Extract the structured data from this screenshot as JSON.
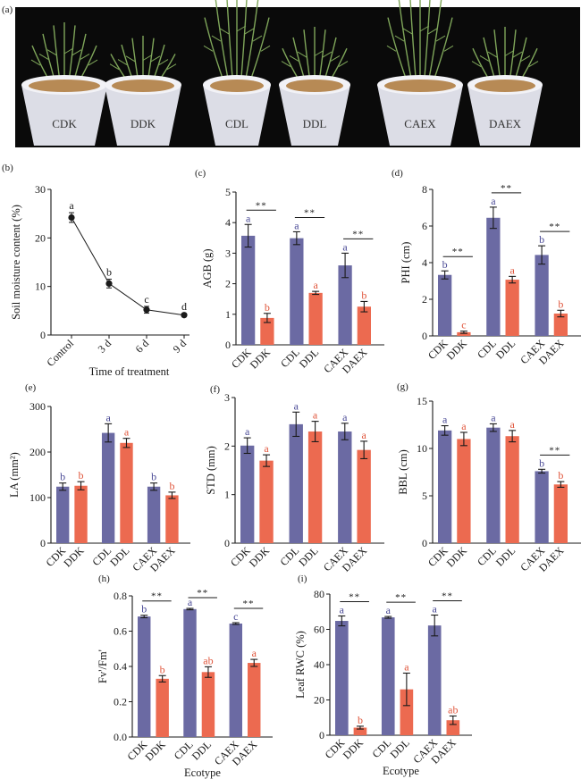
{
  "figure": {
    "colors": {
      "control": "#6b6aa3",
      "drought": "#ec6a50",
      "control_letter": "#4a4a96",
      "drought_letter": "#e0563c",
      "axis": "#1a1a1a",
      "photo_background": "#0a0a0a",
      "pot": "#dcdde6",
      "soil": "#b78a55",
      "plant": "#7fa65a"
    },
    "photo": {
      "label": "(a)",
      "pots": [
        "CDK",
        "DDK",
        "CDL",
        "DDL",
        "CAEX",
        "DAEX"
      ]
    }
  },
  "chart_data": [
    {
      "id": "b",
      "panel_label": "(b)",
      "type": "line",
      "title": "",
      "xlabel": "Time of treatment",
      "ylabel": "Soil moisture content (%)",
      "categories": [
        "Control",
        "3 d",
        "6 d",
        "9 d"
      ],
      "values": [
        24.2,
        10.6,
        5.2,
        4.1
      ],
      "errors": [
        1.0,
        0.9,
        0.7,
        0.3
      ],
      "letters": [
        "a",
        "b",
        "c",
        "d"
      ],
      "ylim": [
        0,
        30
      ],
      "yticks": [
        0,
        10,
        20,
        30
      ],
      "grid": false
    },
    {
      "id": "c",
      "panel_label": "(c)",
      "type": "bar",
      "xlabel": "",
      "ylabel": "AGB (g)",
      "categories": [
        "CDK",
        "DDK",
        "CDL",
        "DDL",
        "CAEX",
        "DAEX"
      ],
      "values": [
        3.57,
        0.88,
        3.49,
        1.7,
        2.6,
        1.25
      ],
      "errors": [
        0.37,
        0.15,
        0.21,
        0.05,
        0.4,
        0.17
      ],
      "letters": [
        "a",
        "b",
        "a",
        "a",
        "a",
        "b"
      ],
      "significance": [
        "**",
        "**",
        "**"
      ],
      "ylim": [
        0,
        5
      ],
      "yticks": [
        0,
        1,
        2,
        3,
        4,
        5
      ],
      "grid": false
    },
    {
      "id": "d",
      "panel_label": "(d)",
      "type": "bar",
      "xlabel": "",
      "ylabel": "PHI (cm)",
      "categories": [
        "CDK",
        "DDK",
        "CDL",
        "DDL",
        "CAEX",
        "DAEX"
      ],
      "values": [
        3.33,
        0.2,
        6.45,
        3.07,
        4.42,
        1.22
      ],
      "errors": [
        0.22,
        0.06,
        0.58,
        0.18,
        0.5,
        0.18
      ],
      "letters": [
        "b",
        "c",
        "a",
        "a",
        "b",
        "b"
      ],
      "significance": [
        "**",
        "**",
        "**"
      ],
      "ylim": [
        0,
        8
      ],
      "yticks": [
        0,
        2,
        4,
        6,
        8
      ],
      "grid": false
    },
    {
      "id": "e",
      "panel_label": "(e)",
      "type": "bar",
      "xlabel": "",
      "ylabel": "LA (mm²)",
      "categories": [
        "CDK",
        "DDK",
        "CDL",
        "DDL",
        "CAEX",
        "DAEX"
      ],
      "values": [
        124,
        126,
        242,
        220,
        124,
        105
      ],
      "errors": [
        8,
        9,
        20,
        10,
        8,
        7
      ],
      "letters": [
        "b",
        "b",
        "a",
        "a",
        "b",
        "b"
      ],
      "significance": [],
      "ylim": [
        0,
        300
      ],
      "yticks": [
        0,
        100,
        200,
        300
      ],
      "grid": false
    },
    {
      "id": "f",
      "panel_label": "(f)",
      "type": "bar",
      "xlabel": "",
      "ylabel": "STD (mm)",
      "categories": [
        "CDK",
        "DDK",
        "CDL",
        "DDL",
        "CAEX",
        "DAEX"
      ],
      "values": [
        2.01,
        1.7,
        2.45,
        2.3,
        2.3,
        1.92
      ],
      "errors": [
        0.16,
        0.12,
        0.25,
        0.21,
        0.17,
        0.18
      ],
      "letters": [
        "a",
        "a",
        "a",
        "a",
        "a",
        "a"
      ],
      "significance": [],
      "ylim": [
        0,
        3
      ],
      "yticks": [
        0,
        1,
        2,
        3
      ],
      "grid": false
    },
    {
      "id": "g",
      "panel_label": "(g)",
      "type": "bar",
      "xlabel": "",
      "ylabel": "BBL (cm)",
      "categories": [
        "CDK",
        "DDK",
        "CDL",
        "DDL",
        "CAEX",
        "DAEX"
      ],
      "values": [
        11.9,
        11.0,
        12.2,
        11.3,
        7.6,
        6.2
      ],
      "errors": [
        0.5,
        0.7,
        0.4,
        0.6,
        0.2,
        0.3
      ],
      "letters": [
        "a",
        "a",
        "a",
        "a",
        "b",
        "b"
      ],
      "significance": [
        "",
        "",
        "**"
      ],
      "ylim": [
        0,
        15
      ],
      "yticks": [
        0,
        5,
        10,
        15
      ],
      "grid": false
    },
    {
      "id": "h",
      "panel_label": "(h)",
      "type": "bar",
      "xlabel": "Ecotype",
      "ylabel": "Fv'/Fm'",
      "categories": [
        "CDK",
        "DDK",
        "CDL",
        "DDL",
        "CAEX",
        "DAEX"
      ],
      "values": [
        0.683,
        0.33,
        0.725,
        0.368,
        0.643,
        0.42
      ],
      "errors": [
        0.007,
        0.018,
        0.004,
        0.03,
        0.005,
        0.02
      ],
      "letters": [
        "b",
        "b",
        "a",
        "ab",
        "c",
        "a"
      ],
      "significance": [
        "**",
        "**",
        "**"
      ],
      "ylim": [
        0,
        0.8
      ],
      "yticks": [
        "0.0",
        "0.2",
        "0.4",
        "0.6",
        "0.8"
      ],
      "grid": false
    },
    {
      "id": "i",
      "panel_label": "(i)",
      "type": "bar",
      "xlabel": "Ecotype",
      "ylabel": "Leaf RWC (%)",
      "categories": [
        "CDK",
        "DDK",
        "CDL",
        "DDL",
        "CAEX",
        "DAEX"
      ],
      "values": [
        64.8,
        4.3,
        66.8,
        26.0,
        62.2,
        8.5
      ],
      "errors": [
        2.8,
        0.8,
        0.5,
        9.2,
        5.9,
        2.4
      ],
      "letters": [
        "a",
        "b",
        "a",
        "a",
        "a",
        "ab"
      ],
      "significance": [
        "**",
        "**",
        "**"
      ],
      "ylim": [
        0,
        80
      ],
      "yticks": [
        0,
        20,
        40,
        60,
        80
      ],
      "grid": false
    }
  ]
}
